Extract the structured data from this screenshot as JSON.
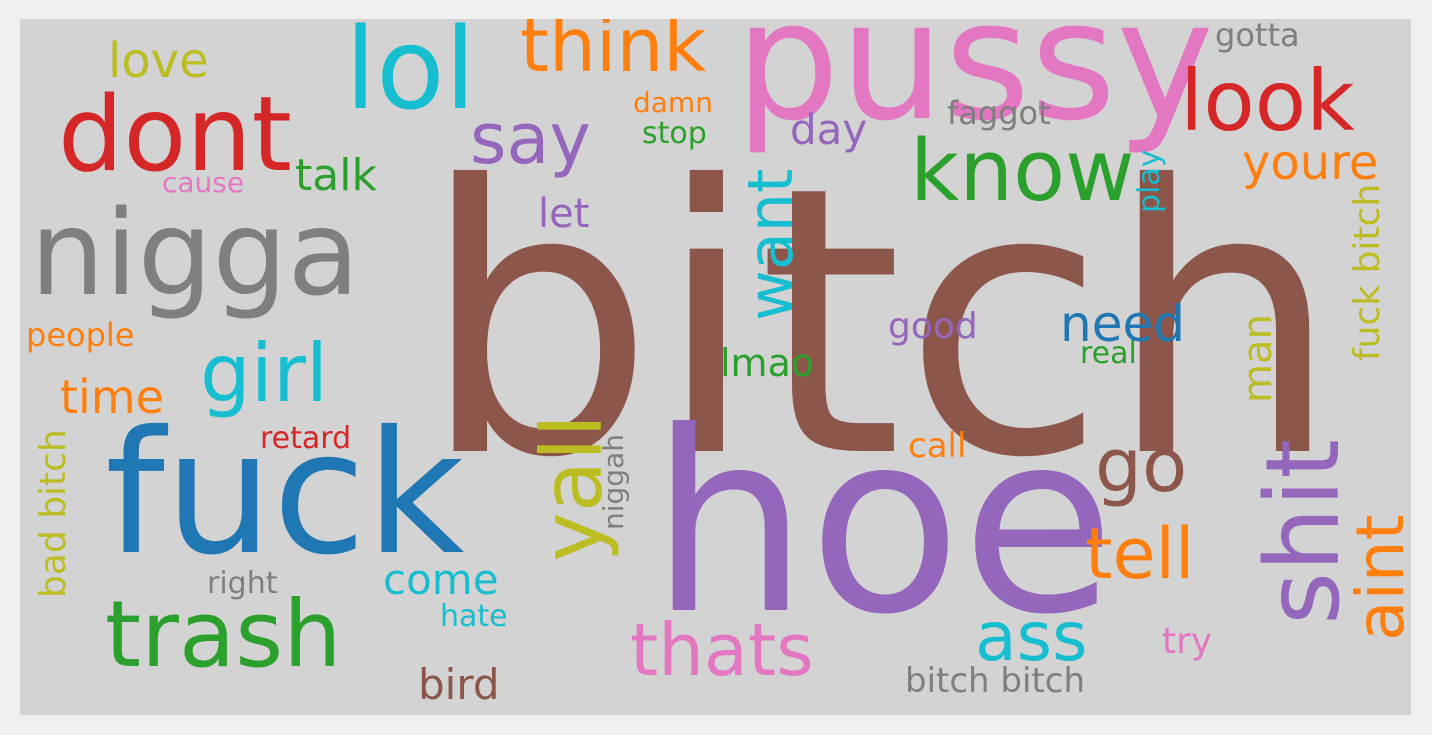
{
  "colors": {
    "page_background": "#f0f0f0",
    "cloud_background": "#d3d3d3",
    "palette": [
      "#1f77b4",
      "#ff7f0e",
      "#2ca02c",
      "#d62728",
      "#9467bd",
      "#8c564b",
      "#e377c2",
      "#7f7f7f",
      "#bcbd22",
      "#17becf"
    ]
  },
  "words": [
    {
      "text": "bitch",
      "color": "#8c564b"
    },
    {
      "text": "hoe",
      "color": "#9467bd"
    },
    {
      "text": "pussy",
      "color": "#e377c2"
    },
    {
      "text": "fuck",
      "color": "#1f77b4"
    },
    {
      "text": "nigga",
      "color": "#7f7f7f"
    },
    {
      "text": "dont",
      "color": "#d62728"
    },
    {
      "text": "lol",
      "color": "#17becf"
    },
    {
      "text": "trash",
      "color": "#2ca02c"
    },
    {
      "text": "shit",
      "color": "#9467bd"
    },
    {
      "text": "look",
      "color": "#d62728"
    },
    {
      "text": "know",
      "color": "#2ca02c"
    },
    {
      "text": "think",
      "color": "#ff7f0e"
    },
    {
      "text": "girl",
      "color": "#17becf"
    },
    {
      "text": "yall",
      "color": "#bcbd22"
    },
    {
      "text": "thats",
      "color": "#e377c2"
    },
    {
      "text": "say",
      "color": "#9467bd"
    },
    {
      "text": "go",
      "color": "#8c564b"
    },
    {
      "text": "tell",
      "color": "#ff7f0e"
    },
    {
      "text": "ass",
      "color": "#17becf"
    },
    {
      "text": "want",
      "color": "#17becf"
    },
    {
      "text": "aint",
      "color": "#ff7f0e"
    },
    {
      "text": "love",
      "color": "#bcbd22"
    },
    {
      "text": "youre",
      "color": "#ff7f0e"
    },
    {
      "text": "need",
      "color": "#1f77b4"
    },
    {
      "text": "talk",
      "color": "#2ca02c"
    },
    {
      "text": "time",
      "color": "#ff7f0e"
    },
    {
      "text": "man",
      "color": "#bcbd22"
    },
    {
      "text": "fuck bitch",
      "color": "#bcbd22"
    },
    {
      "text": "come",
      "color": "#17becf"
    },
    {
      "text": "bird",
      "color": "#8c564b"
    },
    {
      "text": "day",
      "color": "#9467bd"
    },
    {
      "text": "let",
      "color": "#9467bd"
    },
    {
      "text": "lmao",
      "color": "#2ca02c"
    },
    {
      "text": "bad bitch",
      "color": "#bcbd22"
    },
    {
      "text": "bitch bitch",
      "color": "#7f7f7f"
    },
    {
      "text": "gotta",
      "color": "#7f7f7f"
    },
    {
      "text": "faggot",
      "color": "#7f7f7f"
    },
    {
      "text": "good",
      "color": "#9467bd"
    },
    {
      "text": "people",
      "color": "#ff7f0e"
    },
    {
      "text": "cause",
      "color": "#e377c2"
    },
    {
      "text": "damn",
      "color": "#ff7f0e"
    },
    {
      "text": "stop",
      "color": "#2ca02c"
    },
    {
      "text": "play",
      "color": "#17becf"
    },
    {
      "text": "real",
      "color": "#2ca02c"
    },
    {
      "text": "retard",
      "color": "#d62728"
    },
    {
      "text": "call",
      "color": "#ff7f0e"
    },
    {
      "text": "niggah",
      "color": "#7f7f7f"
    },
    {
      "text": "right",
      "color": "#7f7f7f"
    },
    {
      "text": "hate",
      "color": "#17becf"
    },
    {
      "text": "try",
      "color": "#e377c2"
    }
  ]
}
